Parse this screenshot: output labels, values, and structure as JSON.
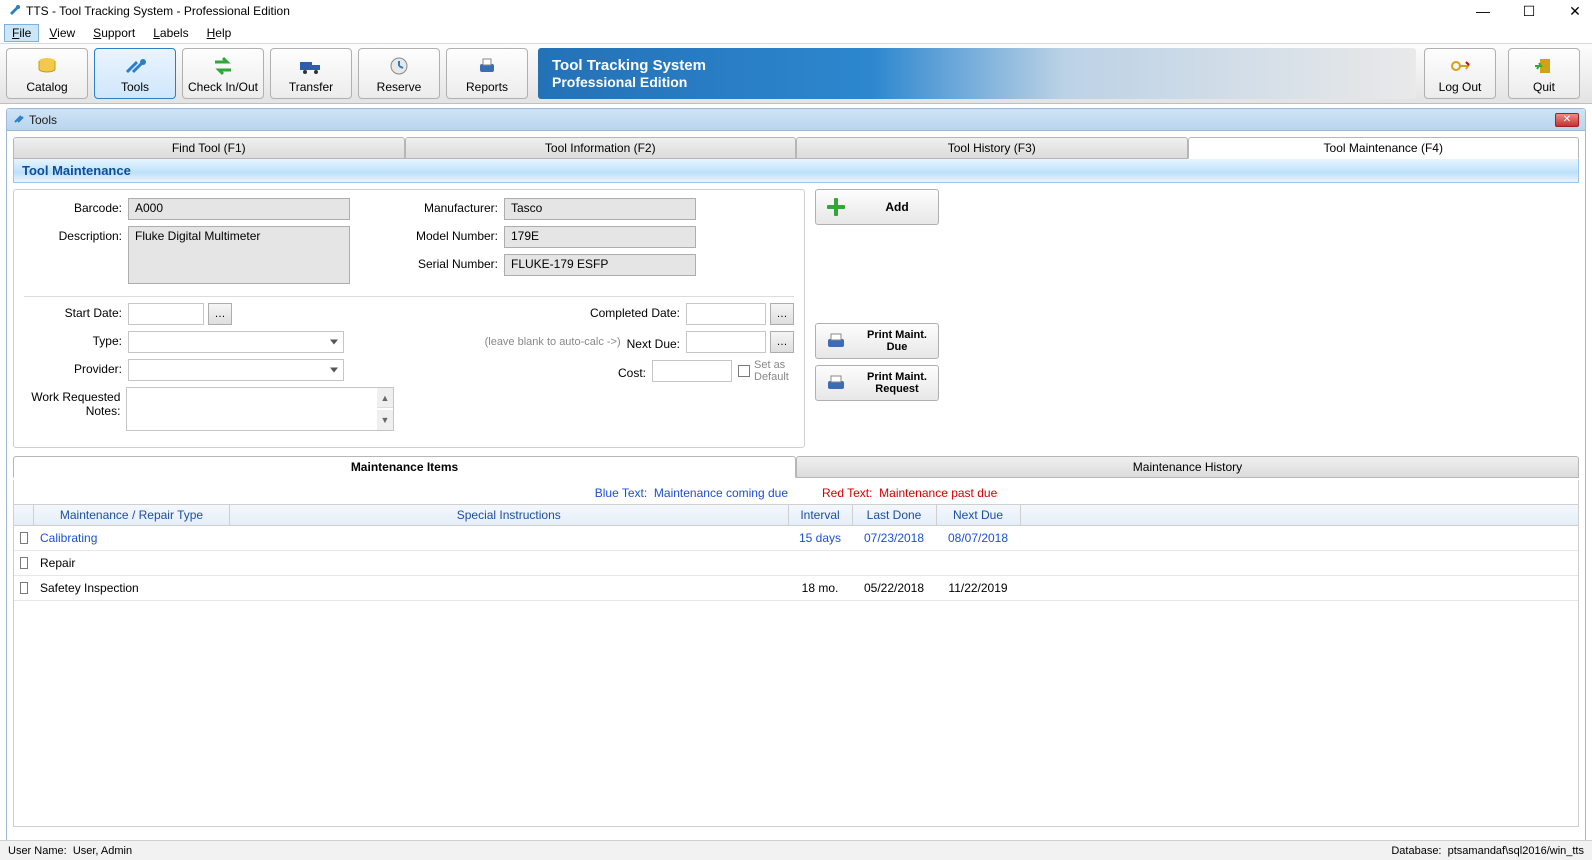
{
  "window": {
    "title": "TTS - Tool Tracking System - Professional Edition",
    "banner_line1": "Tool Tracking System",
    "banner_line2": "Professional Edition"
  },
  "menubar": {
    "file": "File",
    "view": "View",
    "support": "Support",
    "labels": "Labels",
    "help": "Help"
  },
  "toolbar": {
    "catalog": "Catalog",
    "tools": "Tools",
    "checkinout": "Check In/Out",
    "transfer": "Transfer",
    "reserve": "Reserve",
    "reports": "Reports",
    "logout": "Log Out",
    "quit": "Quit"
  },
  "subwindow": {
    "title": "Tools"
  },
  "pagetabs": {
    "find": "Find Tool (F1)",
    "info": "Tool Information (F2)",
    "history": "Tool History (F3)",
    "maint": "Tool Maintenance (F4)"
  },
  "section": {
    "title": "Tool Maintenance"
  },
  "form": {
    "barcode_label": "Barcode:",
    "barcode": "A000",
    "description_label": "Description:",
    "description": "Fluke Digital Multimeter",
    "manufacturer_label": "Manufacturer:",
    "manufacturer": "Tasco",
    "model_label": "Model Number:",
    "model": "179E",
    "serial_label": "Serial Number:",
    "serial": "FLUKE-179 ESFP",
    "start_date_label": "Start Date:",
    "type_label": "Type:",
    "provider_label": "Provider:",
    "notes_label": "Work Requested Notes:",
    "completed_label": "Completed Date:",
    "next_hint": "(leave blank to auto-calc ->)",
    "next_label": "Next Due:",
    "cost_label": "Cost:",
    "default_label": "Set as Default",
    "add_btn": "Add",
    "print_due_btn": "Print Maint. Due",
    "print_req_btn": "Print Maint. Request"
  },
  "lowertabs": {
    "items": "Maintenance Items",
    "history": "Maintenance History"
  },
  "legend": {
    "blue_label": "Blue Text:",
    "blue_text": "Maintenance coming due",
    "red_label": "Red Text:",
    "red_text": "Maintenance past due"
  },
  "table": {
    "headers": {
      "type": "Maintenance / Repair Type",
      "instructions": "Special Instructions",
      "interval": "Interval",
      "last": "Last Done",
      "next": "Next Due"
    },
    "rows": [
      {
        "type": "Calibrating",
        "instructions": "",
        "interval": "15 days",
        "last": "07/23/2018",
        "next": "08/07/2018",
        "color": "#1e4fd6"
      },
      {
        "type": "Repair",
        "instructions": "",
        "interval": "",
        "last": "",
        "next": "",
        "color": "#000000"
      },
      {
        "type": "Safetey Inspection",
        "instructions": "",
        "interval": "18 mo.",
        "last": "05/22/2018",
        "next": "11/22/2019",
        "color": "#000000"
      }
    ]
  },
  "status": {
    "user_label": "User Name:",
    "user": "User, Admin",
    "db_label": "Database:",
    "db": "ptsamandaf\\sql2016/win_tts"
  },
  "colors": {
    "accent_blue": "#2a7fc5",
    "link_blue": "#1e4fd6",
    "alert_red": "#d40000"
  }
}
